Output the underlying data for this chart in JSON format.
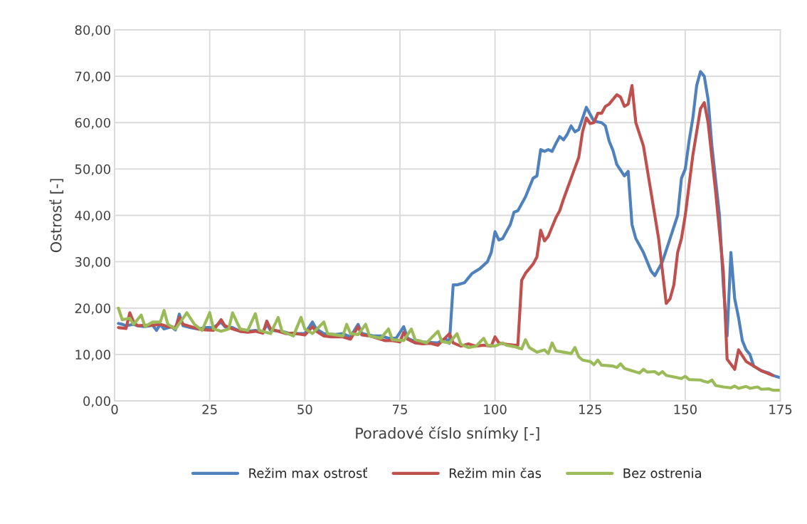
{
  "chart_data": {
    "type": "line",
    "xlabel": "Poradové číslo snímky [-]",
    "ylabel": "Ostrosť [-]",
    "xlim": [
      0,
      175
    ],
    "xticks": [
      0,
      25,
      50,
      75,
      100,
      125,
      150,
      175
    ],
    "ylim": [
      0,
      80
    ],
    "yticks": [
      {
        "value": 0,
        "label": "0,00"
      },
      {
        "value": 10,
        "label": "10,00"
      },
      {
        "value": 20,
        "label": "20,00"
      },
      {
        "value": 30,
        "label": "30,00"
      },
      {
        "value": 40,
        "label": "40,00"
      },
      {
        "value": 50,
        "label": "50,00"
      },
      {
        "value": 60,
        "label": "60,00"
      },
      {
        "value": 70,
        "label": "70,00"
      },
      {
        "value": 80,
        "label": "80,00"
      }
    ],
    "grid": true,
    "legend": "bottom",
    "line_style": "solid",
    "marker": "none",
    "series": [
      {
        "name": "Režim max ostrosť",
        "color": "#4f81bd",
        "x": [
          1,
          2,
          3,
          5,
          6,
          8,
          10,
          11,
          12,
          13,
          15,
          16,
          17,
          18,
          20,
          22,
          24,
          26,
          28,
          29,
          31,
          33,
          35,
          37,
          39,
          40,
          41,
          44,
          46,
          48,
          50,
          52,
          53,
          55,
          58,
          60,
          62,
          64,
          65,
          68,
          70,
          72,
          74,
          76,
          77,
          79,
          83,
          85,
          87,
          88,
          89,
          90,
          92,
          94,
          96,
          98,
          99,
          100,
          101,
          102,
          104,
          105,
          106,
          108,
          110,
          111,
          112,
          113,
          114,
          115,
          116,
          117,
          118,
          119,
          120,
          121,
          122,
          124,
          126,
          128,
          129,
          130,
          131,
          132,
          134,
          135,
          136,
          137,
          139,
          141,
          142,
          144,
          146,
          148,
          149,
          150,
          151,
          152,
          153,
          154,
          155,
          156,
          157,
          159,
          160,
          161,
          162,
          163,
          164,
          165,
          166,
          167,
          168,
          170,
          172,
          173,
          175
        ],
        "values": [
          16.7,
          16.5,
          16.2,
          16.5,
          16.2,
          16,
          16.3,
          15.2,
          16.5,
          15.5,
          16,
          15.3,
          18.7,
          16.2,
          15.8,
          15.5,
          15.8,
          15.8,
          17,
          16,
          15.8,
          15,
          15,
          15.2,
          14.8,
          16.5,
          15.2,
          15,
          14.5,
          14.5,
          14.5,
          17,
          15.5,
          14.5,
          14.3,
          14.5,
          13.8,
          16.5,
          14.5,
          14,
          14,
          13.5,
          13.5,
          16,
          13.5,
          12.8,
          12.6,
          12.5,
          13.5,
          12.4,
          25,
          25,
          25.5,
          27.5,
          28.5,
          30,
          32,
          36.5,
          34.7,
          35,
          38,
          40.7,
          41,
          44,
          48,
          48.5,
          54.2,
          53.8,
          54.2,
          53.8,
          55.5,
          57,
          56.3,
          57.5,
          59.3,
          58,
          58.5,
          63.3,
          60.3,
          60,
          59.3,
          56,
          54,
          51,
          48.5,
          49.5,
          38,
          35,
          32,
          28,
          27,
          30,
          35,
          40,
          48,
          50,
          56,
          61,
          68,
          71,
          70,
          65,
          55,
          40,
          25,
          14,
          32,
          22,
          18,
          13,
          11,
          10,
          7.5,
          6.5,
          6,
          5.5,
          5
        ]
      },
      {
        "name": "Režim min čas",
        "color": "#c0504d",
        "x": [
          1,
          3,
          4,
          5,
          6,
          8,
          10,
          12,
          14,
          16,
          17,
          18,
          20,
          22,
          24,
          26,
          28,
          29,
          31,
          33,
          35,
          37,
          39,
          40,
          41,
          43,
          45,
          47,
          50,
          52,
          53,
          55,
          57,
          60,
          62,
          64,
          65,
          67,
          69,
          71,
          73,
          75,
          76,
          77,
          79,
          81,
          83,
          85,
          88,
          89,
          91,
          93,
          95,
          97,
          99,
          100,
          101,
          103,
          105,
          106,
          107,
          108,
          110,
          111,
          112,
          113,
          114,
          115,
          116,
          117,
          118,
          120,
          122,
          123,
          124,
          125,
          126,
          127,
          128,
          129,
          130,
          132,
          133,
          134,
          135,
          136,
          137,
          139,
          141,
          143,
          144,
          145,
          146,
          147,
          148,
          149,
          150,
          152,
          153,
          154,
          155,
          156,
          158,
          160,
          161,
          163,
          164,
          166,
          168,
          170,
          173
        ],
        "values": [
          15.8,
          15.6,
          19,
          17,
          16.2,
          16.3,
          16.3,
          16.5,
          16,
          15.8,
          18,
          16.5,
          16,
          15.5,
          15.3,
          15.2,
          17.5,
          16.2,
          15.5,
          15,
          14.8,
          15,
          14.6,
          17.2,
          15.5,
          15,
          14.5,
          14.6,
          14.2,
          16,
          15,
          14,
          13.8,
          13.8,
          13.3,
          16,
          14.2,
          14,
          13.5,
          13,
          13,
          12.7,
          14.8,
          13.3,
          12.5,
          12.3,
          12.4,
          12,
          14.5,
          12.5,
          11.8,
          12.3,
          11.8,
          12,
          11.8,
          13.8,
          12.5,
          12.2,
          12,
          12,
          26,
          27.5,
          29.5,
          31,
          36.8,
          34.5,
          35.5,
          37.5,
          39.5,
          41,
          43.5,
          48,
          52.5,
          58,
          61,
          59.8,
          60,
          62,
          62,
          63.5,
          64,
          66,
          65.5,
          63.5,
          64,
          68,
          60,
          55,
          45,
          35,
          28,
          21,
          22,
          25,
          32,
          35,
          40,
          53,
          58,
          63,
          64.3,
          60,
          45,
          28,
          9,
          6.8,
          11,
          8.5,
          7.5,
          6.5,
          5.5
        ]
      },
      {
        "name": "Bez ostrenia",
        "color": "#9bbb59",
        "x": [
          1,
          2,
          4,
          5,
          7,
          8,
          10,
          12,
          13,
          14,
          16,
          19,
          21,
          23,
          25,
          26,
          28,
          30,
          31,
          33,
          35,
          37,
          38,
          41,
          43,
          44,
          47,
          49,
          50,
          52,
          55,
          56,
          60,
          61,
          62,
          64,
          66,
          67,
          70,
          72,
          73,
          76,
          78,
          79,
          82,
          85,
          86,
          88,
          90,
          91,
          93,
          95,
          97,
          98,
          100,
          102,
          103,
          105,
          107,
          108,
          109,
          111,
          113,
          114,
          115,
          116,
          118,
          120,
          121,
          122,
          123,
          125,
          126,
          127,
          128,
          131,
          132,
          133,
          134,
          136,
          138,
          139,
          140,
          142,
          143,
          144,
          145,
          148,
          149,
          150,
          151,
          154,
          155,
          156,
          157,
          158,
          160,
          162,
          163,
          164,
          166,
          167,
          169,
          170,
          172,
          173,
          175
        ],
        "values": [
          20,
          17.5,
          17.8,
          16.5,
          18.5,
          16,
          17,
          17,
          19.5,
          16.5,
          15.5,
          19,
          16.5,
          15.2,
          19,
          15.5,
          15,
          15.5,
          19,
          15.5,
          15.2,
          18.8,
          15.2,
          14.5,
          18,
          15,
          14,
          18,
          15.5,
          14.5,
          17,
          14.5,
          14,
          16.5,
          14.5,
          14.3,
          16.5,
          14,
          13.5,
          15.5,
          13.2,
          13,
          15.5,
          13.2,
          12.5,
          15,
          12.8,
          12.5,
          14.5,
          12.2,
          11.5,
          11.8,
          13.5,
          12,
          11.8,
          12.5,
          12,
          11.7,
          11.2,
          13.2,
          11.5,
          10.5,
          11,
          10.2,
          12.5,
          10.8,
          10.5,
          10.2,
          11.5,
          9.5,
          8.8,
          8.5,
          7.8,
          8.8,
          7.7,
          7.5,
          7.2,
          8,
          7,
          6.5,
          6,
          6.8,
          6.2,
          6.3,
          5.7,
          6.3,
          5.5,
          5,
          4.8,
          5.3,
          4.6,
          4.5,
          4.2,
          4,
          4.5,
          3.3,
          3,
          2.8,
          3.2,
          2.7,
          3.1,
          2.7,
          3,
          2.5,
          2.6,
          2.3,
          2.3
        ]
      }
    ]
  }
}
